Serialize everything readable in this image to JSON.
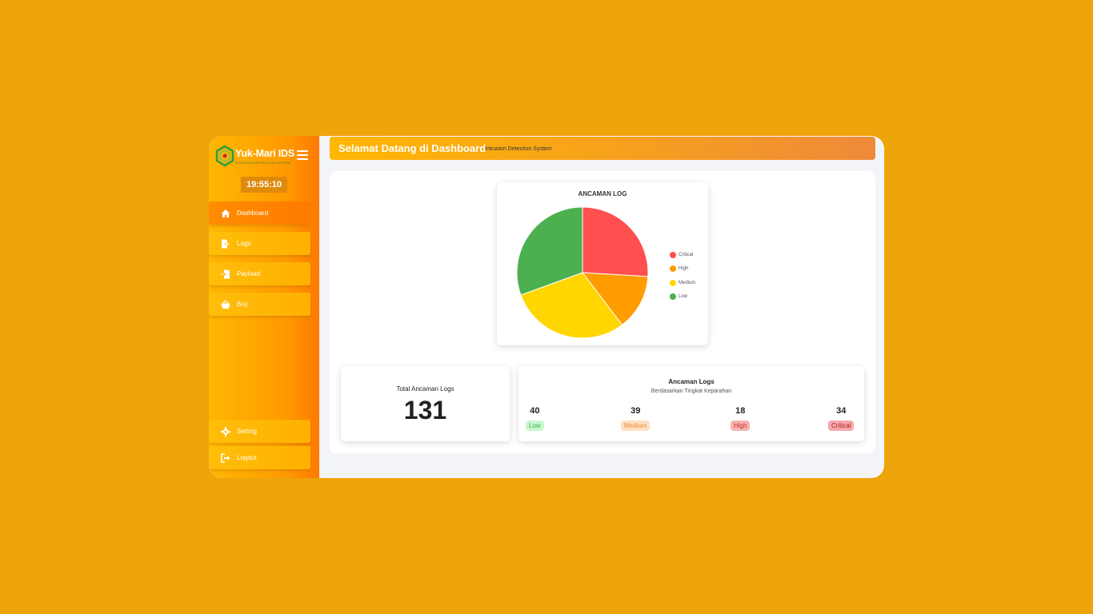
{
  "sidebar": {
    "brand_name": "Yuk-Mari IDS",
    "brand_tagline": "INTRUSION DETECTION SYSTEM",
    "clock": "19:55:10",
    "items": [
      {
        "label": "Dashboard",
        "icon": "home-icon"
      },
      {
        "label": "Logs",
        "icon": "file-export-icon"
      },
      {
        "label": "Payload",
        "icon": "file-import-icon"
      },
      {
        "label": "Buy",
        "icon": "basket-icon"
      }
    ],
    "bottom_items": [
      {
        "label": "Setting",
        "icon": "gear-icon"
      },
      {
        "label": "Logout",
        "icon": "logout-icon"
      }
    ]
  },
  "header": {
    "title": "Selamat Datang di Dashboard",
    "subtitle": "Intrusion Detection System"
  },
  "chart_data": {
    "type": "pie",
    "title": "ANCAMAN LOG",
    "categories": [
      "Critical",
      "High",
      "Medium",
      "Low"
    ],
    "values": [
      34,
      18,
      39,
      40
    ],
    "colors": [
      "#FF4F4F",
      "#FF9C00",
      "#FFD600",
      "#4CAF50"
    ],
    "legend": "right"
  },
  "total": {
    "label": "Total Ancaman Logs",
    "value": "131"
  },
  "severity": {
    "title": "Ancaman Logs",
    "subtitle": "Berdasarkan Tingkat Keparahan",
    "levels": [
      {
        "count": "40",
        "label": "Low",
        "bg": "#C9F7CF",
        "fg": "#3DAE4B"
      },
      {
        "count": "39",
        "label": "Medium",
        "bg": "#FFE0C2",
        "fg": "#E98A2E"
      },
      {
        "count": "18",
        "label": "High",
        "bg": "#F7B3B3",
        "fg": "#C62828"
      },
      {
        "count": "34",
        "label": "Critical",
        "bg": "#F4A7AE",
        "fg": "#B71C1C"
      }
    ]
  }
}
